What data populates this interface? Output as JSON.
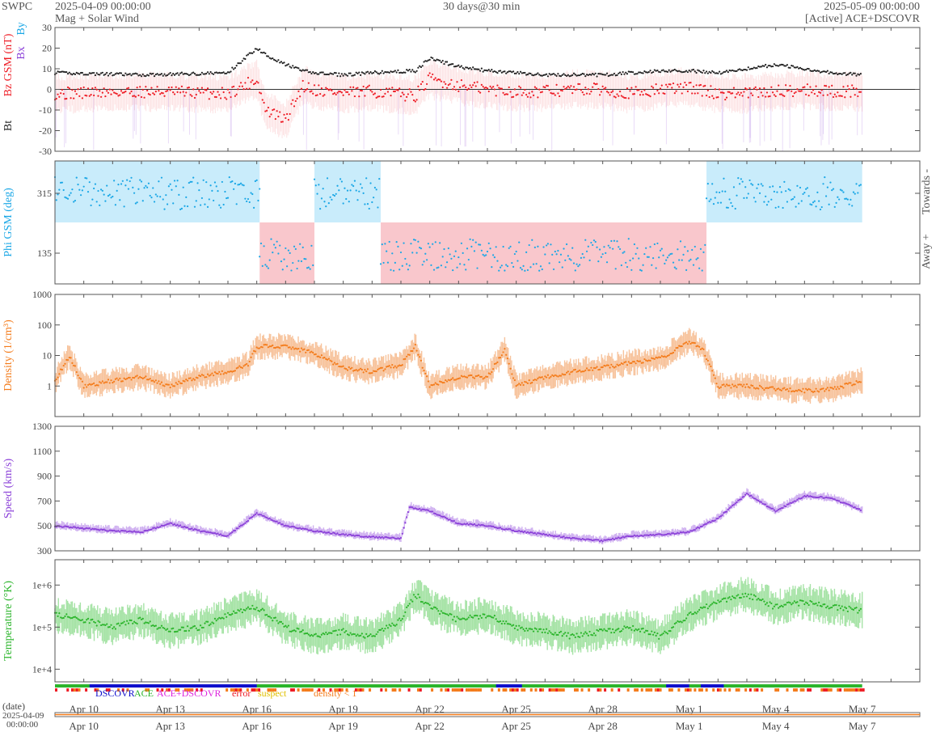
{
  "header": {
    "org": "SWPC",
    "start": "2025-04-09 00:00:00",
    "subtitle": "Mag + Solar Wind",
    "span": "30 days@30 min",
    "end": "2025-05-09 00:00:00",
    "source": "[Active] ACE+DSCOVR"
  },
  "colors": {
    "bt": "#222222",
    "bz": "#ee1c25",
    "by": "#1aa7e6",
    "bx": "#8a3fd8",
    "phi": "#1aa7e6",
    "towards_fill": "#c9ecfb",
    "away_fill": "#f9c7cc",
    "density": "#f47c1c",
    "density_band": "#f7c39c",
    "speed": "#8a3fd8",
    "speed_band": "#cfb0f0",
    "temperature": "#2cb52c",
    "temperature_band": "#a6e3a6",
    "legend_dscovr": "#1010cc",
    "legend_ace": "#2cb52c",
    "legend_both": "#dd22dd",
    "legend_error": "#ee1c25",
    "legend_suspect": "#e0c000",
    "legend_density": "#f47c1c"
  },
  "chart_data": [
    {
      "type": "line",
      "id": "mag",
      "ylabel_parts": [
        "Bt",
        "Bz GSM (nT)",
        "Bx",
        "By"
      ],
      "ylim": [
        -30,
        30
      ],
      "yticks": [
        30,
        20,
        10,
        0,
        -10,
        -20,
        -30
      ],
      "x_days": [
        0,
        3,
        6,
        7,
        7.3,
        8,
        8.6,
        9,
        10,
        11,
        12.5,
        13,
        14,
        15,
        16,
        17,
        18,
        19,
        20,
        21,
        22,
        23,
        24,
        25,
        26,
        27,
        28,
        29,
        30
      ],
      "series": [
        {
          "name": "Bt",
          "values": [
            8,
            7,
            8,
            20,
            17,
            12,
            9,
            8,
            7,
            8,
            9,
            15,
            11,
            9,
            8,
            7,
            7,
            7,
            8,
            9,
            9,
            8,
            10,
            12,
            10,
            8,
            7,
            6,
            5
          ]
        },
        {
          "name": "Bz",
          "values": [
            -2,
            -1,
            -2,
            5,
            -10,
            -15,
            2,
            0,
            -2,
            -1,
            -3,
            5,
            2,
            0,
            -1,
            -1,
            0,
            0,
            -2,
            0,
            1,
            -2,
            -2,
            -1,
            0,
            -1,
            -1,
            0,
            0
          ]
        }
      ]
    },
    {
      "type": "scatter",
      "id": "phi",
      "ylabel": "Phi GSM (deg)",
      "ytick_labels": [
        "315",
        "135"
      ],
      "right_labels": [
        "Towards -",
        "Away +"
      ],
      "sectors": [
        {
          "from": 0,
          "to": 7.1,
          "side": "towards"
        },
        {
          "from": 7.1,
          "to": 9.0,
          "side": "away"
        },
        {
          "from": 9.0,
          "to": 11.3,
          "side": "towards"
        },
        {
          "from": 11.3,
          "to": 22.6,
          "side": "away"
        },
        {
          "from": 22.6,
          "to": 28.0,
          "side": "towards"
        }
      ]
    },
    {
      "type": "line",
      "id": "density",
      "ylabel": "Density (1/cm³)",
      "scale": "log",
      "ylim": [
        0.1,
        1000
      ],
      "ytick_labels": [
        "1000",
        "100",
        "10",
        "1"
      ],
      "x_days": [
        0,
        0.5,
        1,
        2,
        3,
        4,
        5,
        6,
        6.7,
        7,
        8,
        9,
        10,
        11,
        12,
        12.5,
        13,
        14,
        15,
        15.6,
        16,
        17,
        18,
        19,
        20,
        21,
        22,
        22.5,
        23,
        24,
        25,
        26,
        27,
        28
      ],
      "values": [
        1.5,
        10,
        1,
        1.5,
        2,
        1,
        2,
        3,
        5,
        20,
        20,
        12,
        4,
        3,
        5,
        20,
        1,
        2,
        2,
        15,
        1,
        2,
        3,
        4,
        6,
        8,
        30,
        15,
        1,
        1,
        0.8,
        0.7,
        0.8,
        1.5
      ]
    },
    {
      "type": "line",
      "id": "speed",
      "ylabel": "Speed (km/s)",
      "ylim": [
        300,
        1300
      ],
      "yticks": [
        1300,
        1100,
        900,
        700,
        500,
        300
      ],
      "x_days": [
        0,
        1,
        2,
        3,
        4,
        5,
        6,
        7,
        8,
        9,
        10,
        11,
        12,
        12.3,
        13,
        14,
        15,
        16,
        17,
        18,
        19,
        20,
        21,
        22,
        23,
        24,
        25,
        26,
        27,
        28
      ],
      "values": [
        500,
        480,
        460,
        450,
        520,
        460,
        420,
        600,
        500,
        460,
        430,
        410,
        400,
        650,
        620,
        520,
        500,
        460,
        430,
        400,
        380,
        420,
        430,
        450,
        560,
        760,
        620,
        740,
        720,
        620
      ]
    },
    {
      "type": "line",
      "id": "temperature",
      "ylabel": "Temperature (°K)",
      "scale": "log",
      "ylim": [
        5000,
        4000000
      ],
      "ytick_labels": [
        "1e+6",
        "1e+5",
        "1e+4"
      ],
      "x_days": [
        0,
        1,
        2,
        3,
        4,
        5,
        6,
        7,
        8,
        9,
        10,
        11,
        12,
        12.5,
        13,
        14,
        15,
        16,
        17,
        18,
        19,
        20,
        21,
        22,
        23,
        24,
        25,
        26,
        27,
        28
      ],
      "values": [
        200000,
        150000,
        100000,
        150000,
        80000,
        100000,
        200000,
        300000,
        100000,
        60000,
        80000,
        60000,
        150000,
        600000,
        300000,
        150000,
        200000,
        100000,
        80000,
        60000,
        80000,
        100000,
        60000,
        200000,
        400000,
        600000,
        300000,
        400000,
        300000,
        250000
      ]
    }
  ],
  "legend": {
    "dscovr": "DSCOVR",
    "ace": "ACE",
    "both": "ACE+DSCOVR",
    "error": "error",
    "suspect": "suspect",
    "density": "density < 1"
  },
  "xaxis": {
    "date_label": "(date)",
    "start_date": "2025-04-09",
    "start_time": "00:00:00",
    "ticks": [
      "Apr 10",
      "Apr 13",
      "Apr 16",
      "Apr 19",
      "Apr 22",
      "Apr 25",
      "Apr 28",
      "May 1",
      "May 4",
      "May 7"
    ],
    "tick_days": [
      1,
      4,
      7,
      10,
      13,
      16,
      19,
      22,
      25,
      28
    ]
  }
}
